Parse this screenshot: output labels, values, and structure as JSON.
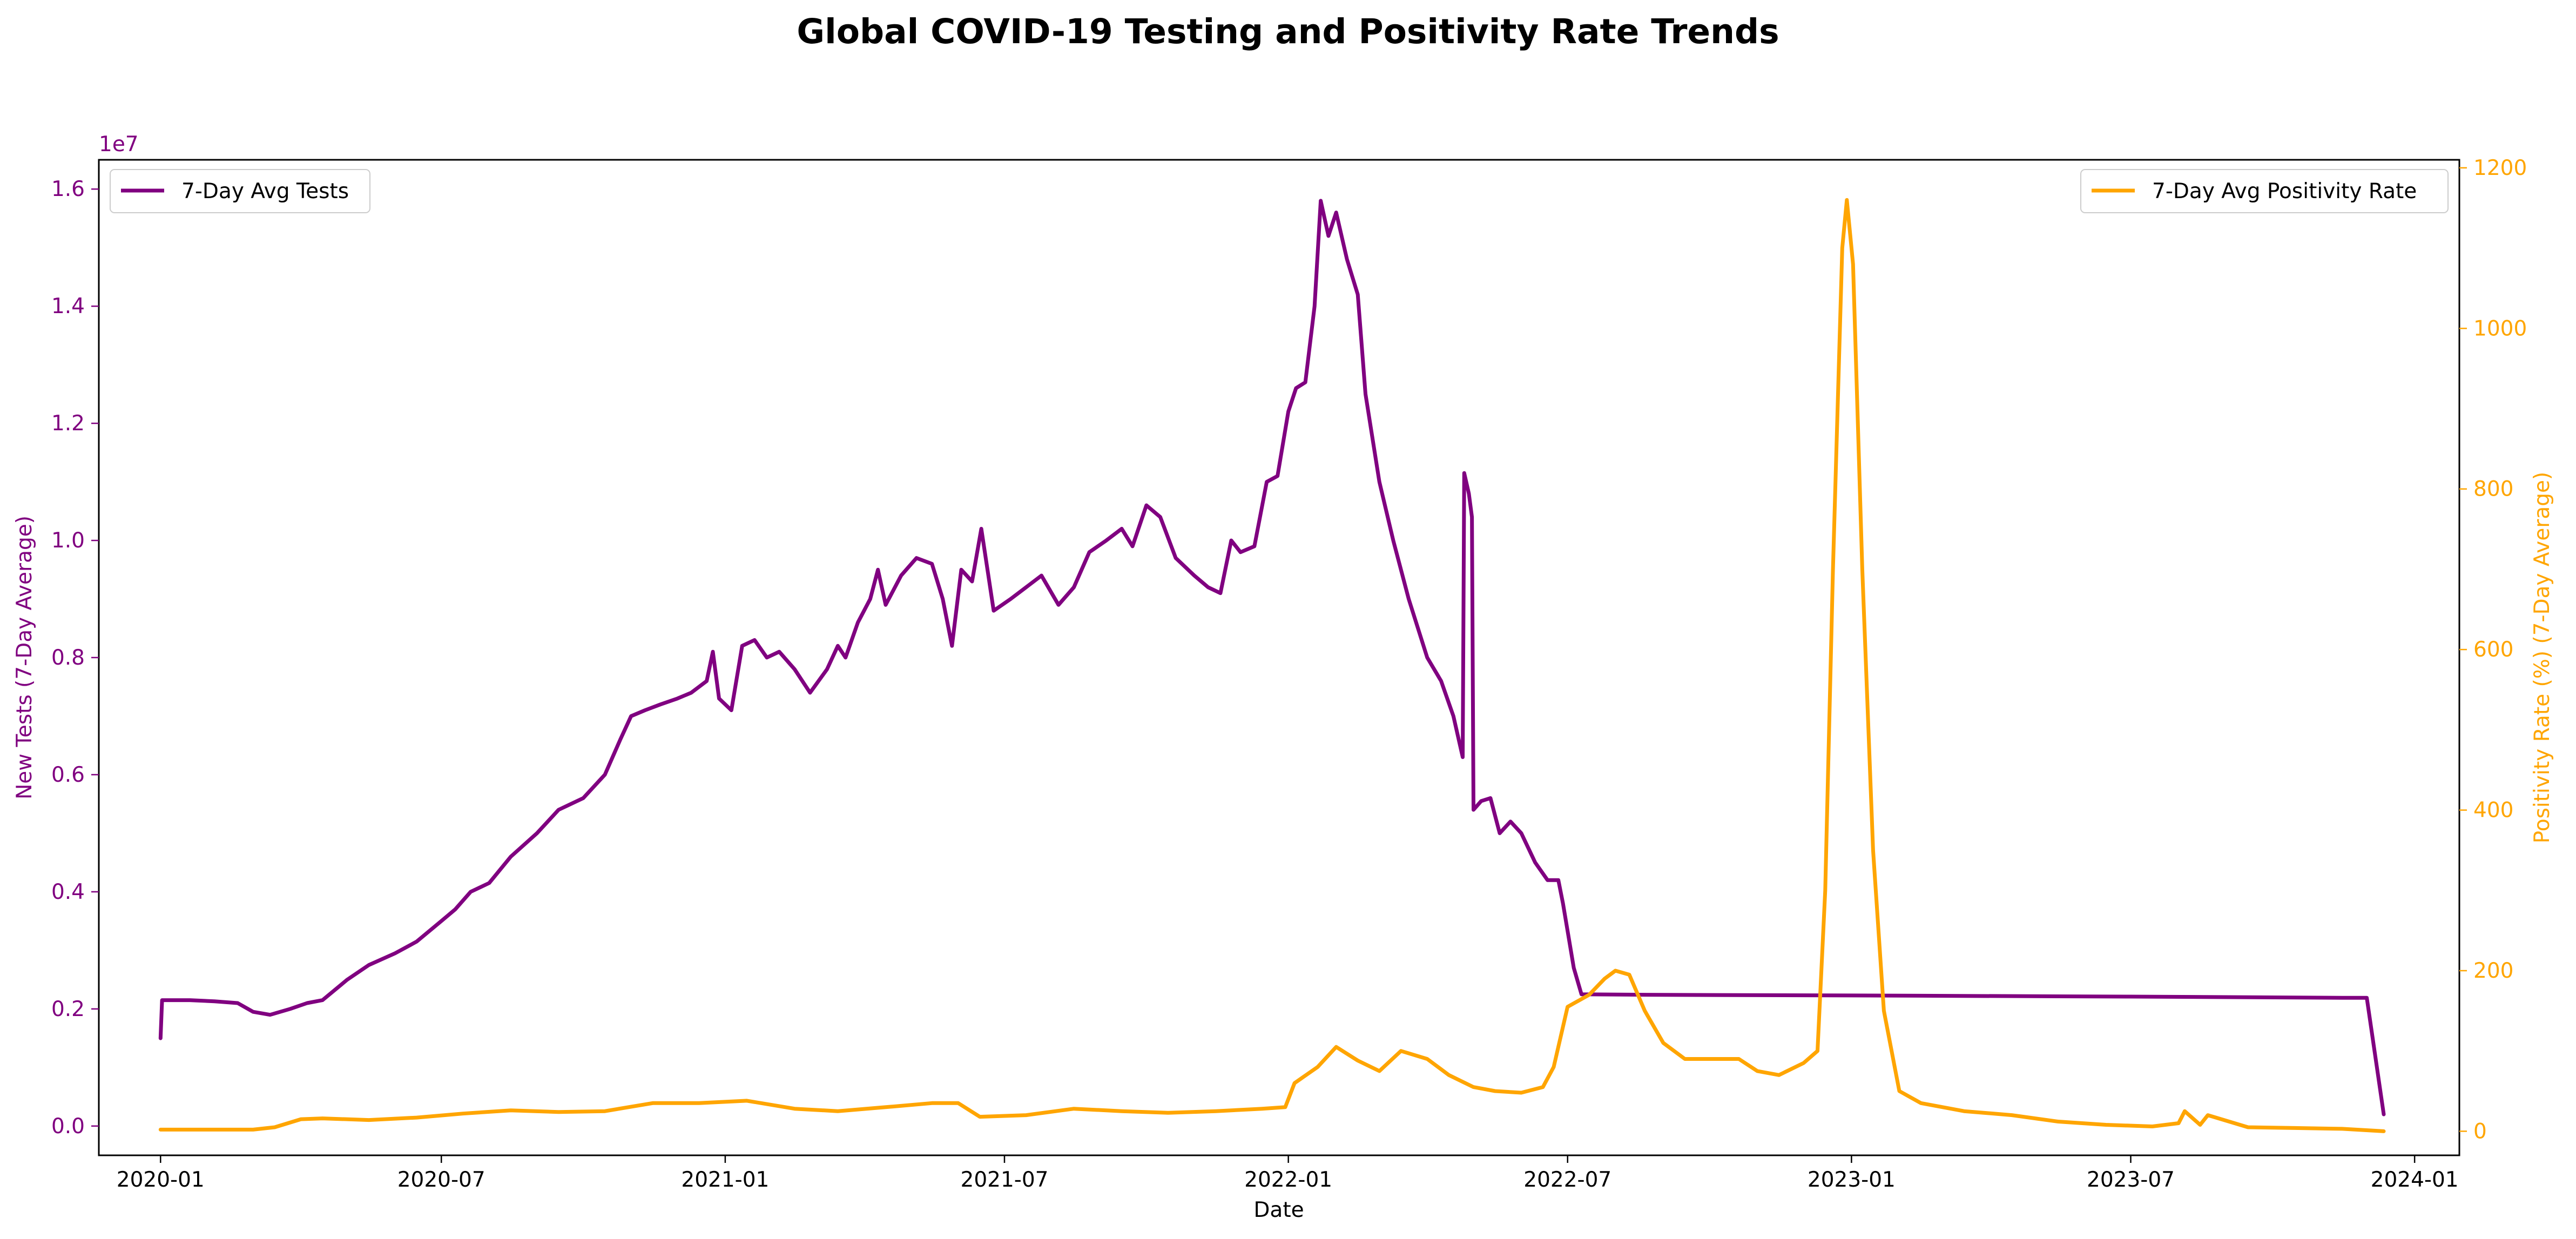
{
  "chart_data": {
    "type": "line",
    "title": "Global COVID-19 Testing and Positivity Rate Trends",
    "xlabel": "Date",
    "x_ticks": [
      "2020-01",
      "2020-07",
      "2021-01",
      "2021-07",
      "2022-01",
      "2022-07",
      "2023-01",
      "2023-07",
      "2024-01"
    ],
    "x_range": [
      "2019-11-22",
      "2024-01-30"
    ],
    "left_axis": {
      "label": "New Tests (7-Day Average)",
      "scale_note": "1e7",
      "color": "#800080",
      "range": [
        -0.05,
        1.65
      ],
      "ticks": [
        "0.0",
        "0.2",
        "0.4",
        "0.6",
        "0.8",
        "1.0",
        "1.2",
        "1.4",
        "1.6"
      ]
    },
    "right_axis": {
      "label": "Positivity Rate (%) (7-Day Average)",
      "color": "#FFA500",
      "range": [
        -30,
        1210
      ],
      "ticks": [
        "0",
        "200",
        "400",
        "600",
        "800",
        "1000",
        "1200"
      ]
    },
    "grid": false,
    "series": [
      {
        "name": "7-Day Avg Tests",
        "axis": "left",
        "color": "#800080",
        "legend_position": "upper-left",
        "points": [
          [
            "2020-01-01",
            0.15
          ],
          [
            "2020-01-02",
            0.215
          ],
          [
            "2020-01-20",
            0.215
          ],
          [
            "2020-02-05",
            0.213
          ],
          [
            "2020-02-20",
            0.21
          ],
          [
            "2020-03-01",
            0.195
          ],
          [
            "2020-03-12",
            0.19
          ],
          [
            "2020-03-25",
            0.2
          ],
          [
            "2020-04-05",
            0.21
          ],
          [
            "2020-04-15",
            0.215
          ],
          [
            "2020-05-01",
            0.25
          ],
          [
            "2020-05-15",
            0.275
          ],
          [
            "2020-06-01",
            0.295
          ],
          [
            "2020-06-15",
            0.315
          ],
          [
            "2020-07-01",
            0.35
          ],
          [
            "2020-07-10",
            0.37
          ],
          [
            "2020-07-20",
            0.4
          ],
          [
            "2020-08-01",
            0.415
          ],
          [
            "2020-08-15",
            0.46
          ],
          [
            "2020-09-01",
            0.5
          ],
          [
            "2020-09-15",
            0.54
          ],
          [
            "2020-10-01",
            0.56
          ],
          [
            "2020-10-15",
            0.6
          ],
          [
            "2020-10-25",
            0.66
          ],
          [
            "2020-11-01",
            0.7
          ],
          [
            "2020-11-10",
            0.71
          ],
          [
            "2020-11-20",
            0.72
          ],
          [
            "2020-12-01",
            0.73
          ],
          [
            "2020-12-10",
            0.74
          ],
          [
            "2020-12-20",
            0.76
          ],
          [
            "2020-12-24",
            0.81
          ],
          [
            "2020-12-28",
            0.73
          ],
          [
            "2021-01-05",
            0.71
          ],
          [
            "2021-01-12",
            0.82
          ],
          [
            "2021-01-20",
            0.83
          ],
          [
            "2021-01-28",
            0.8
          ],
          [
            "2021-02-05",
            0.81
          ],
          [
            "2021-02-15",
            0.78
          ],
          [
            "2021-02-25",
            0.74
          ],
          [
            "2021-03-08",
            0.78
          ],
          [
            "2021-03-15",
            0.82
          ],
          [
            "2021-03-20",
            0.8
          ],
          [
            "2021-03-28",
            0.86
          ],
          [
            "2021-04-05",
            0.9
          ],
          [
            "2021-04-10",
            0.95
          ],
          [
            "2021-04-15",
            0.89
          ],
          [
            "2021-04-25",
            0.94
          ],
          [
            "2021-05-05",
            0.97
          ],
          [
            "2021-05-15",
            0.96
          ],
          [
            "2021-05-22",
            0.9
          ],
          [
            "2021-05-28",
            0.82
          ],
          [
            "2021-06-03",
            0.95
          ],
          [
            "2021-06-10",
            0.93
          ],
          [
            "2021-06-16",
            1.02
          ],
          [
            "2021-06-24",
            0.88
          ],
          [
            "2021-07-05",
            0.9
          ],
          [
            "2021-07-15",
            0.92
          ],
          [
            "2021-07-25",
            0.94
          ],
          [
            "2021-08-05",
            0.89
          ],
          [
            "2021-08-15",
            0.92
          ],
          [
            "2021-08-25",
            0.98
          ],
          [
            "2021-09-05",
            1.0
          ],
          [
            "2021-09-15",
            1.02
          ],
          [
            "2021-09-22",
            0.99
          ],
          [
            "2021-10-01",
            1.06
          ],
          [
            "2021-10-10",
            1.04
          ],
          [
            "2021-10-20",
            0.97
          ],
          [
            "2021-11-01",
            0.94
          ],
          [
            "2021-11-10",
            0.92
          ],
          [
            "2021-11-18",
            0.91
          ],
          [
            "2021-11-25",
            1.0
          ],
          [
            "2021-12-01",
            0.98
          ],
          [
            "2021-12-10",
            0.99
          ],
          [
            "2021-12-18",
            1.1
          ],
          [
            "2021-12-25",
            1.11
          ],
          [
            "2022-01-01",
            1.22
          ],
          [
            "2022-01-06",
            1.26
          ],
          [
            "2022-01-12",
            1.27
          ],
          [
            "2022-01-18",
            1.4
          ],
          [
            "2022-01-22",
            1.58
          ],
          [
            "2022-01-27",
            1.52
          ],
          [
            "2022-02-01",
            1.56
          ],
          [
            "2022-02-08",
            1.48
          ],
          [
            "2022-02-15",
            1.42
          ],
          [
            "2022-02-20",
            1.25
          ],
          [
            "2022-03-01",
            1.1
          ],
          [
            "2022-03-10",
            1.0
          ],
          [
            "2022-03-20",
            0.9
          ],
          [
            "2022-04-01",
            0.8
          ],
          [
            "2022-04-10",
            0.76
          ],
          [
            "2022-04-18",
            0.7
          ],
          [
            "2022-04-24",
            0.63
          ],
          [
            "2022-04-25",
            1.115
          ],
          [
            "2022-04-28",
            1.08
          ],
          [
            "2022-04-30",
            1.04
          ],
          [
            "2022-05-01",
            0.54
          ],
          [
            "2022-05-06",
            0.555
          ],
          [
            "2022-05-12",
            0.56
          ],
          [
            "2022-05-18",
            0.5
          ],
          [
            "2022-05-25",
            0.52
          ],
          [
            "2022-06-01",
            0.5
          ],
          [
            "2022-06-10",
            0.45
          ],
          [
            "2022-06-18",
            0.42
          ],
          [
            "2022-06-25",
            0.42
          ],
          [
            "2022-06-28",
            0.38
          ],
          [
            "2022-07-05",
            0.27
          ],
          [
            "2022-07-10",
            0.225
          ],
          [
            "2022-09-01",
            0.224
          ],
          [
            "2023-01-01",
            0.223
          ],
          [
            "2023-07-01",
            0.221
          ],
          [
            "2023-11-15",
            0.219
          ],
          [
            "2023-12-01",
            0.219
          ],
          [
            "2023-12-12",
            0.02
          ]
        ]
      },
      {
        "name": "7-Day Avg Positivity Rate",
        "axis": "right",
        "color": "#FFA500",
        "legend_position": "upper-right",
        "points": [
          [
            "2020-01-01",
            2
          ],
          [
            "2020-02-01",
            2
          ],
          [
            "2020-03-01",
            2
          ],
          [
            "2020-03-15",
            5
          ],
          [
            "2020-04-01",
            15
          ],
          [
            "2020-04-15",
            16
          ],
          [
            "2020-05-15",
            14
          ],
          [
            "2020-06-15",
            17
          ],
          [
            "2020-07-15",
            22
          ],
          [
            "2020-08-15",
            26
          ],
          [
            "2020-09-15",
            24
          ],
          [
            "2020-10-15",
            25
          ],
          [
            "2020-11-15",
            35
          ],
          [
            "2020-12-15",
            35
          ],
          [
            "2021-01-15",
            38
          ],
          [
            "2021-02-15",
            28
          ],
          [
            "2021-03-15",
            25
          ],
          [
            "2021-04-15",
            30
          ],
          [
            "2021-05-15",
            35
          ],
          [
            "2021-06-01",
            35
          ],
          [
            "2021-06-15",
            18
          ],
          [
            "2021-07-15",
            20
          ],
          [
            "2021-08-15",
            28
          ],
          [
            "2021-09-15",
            25
          ],
          [
            "2021-10-15",
            23
          ],
          [
            "2021-11-15",
            25
          ],
          [
            "2021-12-15",
            28
          ],
          [
            "2021-12-30",
            30
          ],
          [
            "2022-01-05",
            60
          ],
          [
            "2022-01-20",
            80
          ],
          [
            "2022-02-01",
            105
          ],
          [
            "2022-02-15",
            88
          ],
          [
            "2022-03-01",
            75
          ],
          [
            "2022-03-15",
            100
          ],
          [
            "2022-04-01",
            90
          ],
          [
            "2022-04-15",
            70
          ],
          [
            "2022-05-01",
            55
          ],
          [
            "2022-05-15",
            50
          ],
          [
            "2022-06-01",
            48
          ],
          [
            "2022-06-15",
            55
          ],
          [
            "2022-06-22",
            80
          ],
          [
            "2022-07-01",
            155
          ],
          [
            "2022-07-15",
            170
          ],
          [
            "2022-07-25",
            190
          ],
          [
            "2022-08-01",
            200
          ],
          [
            "2022-08-10",
            195
          ],
          [
            "2022-08-20",
            150
          ],
          [
            "2022-09-01",
            110
          ],
          [
            "2022-09-15",
            90
          ],
          [
            "2022-10-01",
            90
          ],
          [
            "2022-10-20",
            90
          ],
          [
            "2022-11-01",
            75
          ],
          [
            "2022-11-15",
            70
          ],
          [
            "2022-12-01",
            85
          ],
          [
            "2022-12-10",
            100
          ],
          [
            "2022-12-15",
            300
          ],
          [
            "2022-12-20",
            700
          ],
          [
            "2022-12-26",
            1100
          ],
          [
            "2022-12-29",
            1160
          ],
          [
            "2023-01-02",
            1080
          ],
          [
            "2023-01-08",
            700
          ],
          [
            "2023-01-15",
            350
          ],
          [
            "2023-01-22",
            150
          ],
          [
            "2023-02-01",
            50
          ],
          [
            "2023-02-15",
            35
          ],
          [
            "2023-03-15",
            25
          ],
          [
            "2023-04-15",
            20
          ],
          [
            "2023-05-15",
            12
          ],
          [
            "2023-06-15",
            8
          ],
          [
            "2023-07-15",
            6
          ],
          [
            "2023-08-01",
            10
          ],
          [
            "2023-08-05",
            25
          ],
          [
            "2023-08-15",
            8
          ],
          [
            "2023-08-20",
            20
          ],
          [
            "2023-09-15",
            5
          ],
          [
            "2023-10-15",
            4
          ],
          [
            "2023-11-15",
            3
          ],
          [
            "2023-12-12",
            0
          ]
        ]
      }
    ]
  }
}
